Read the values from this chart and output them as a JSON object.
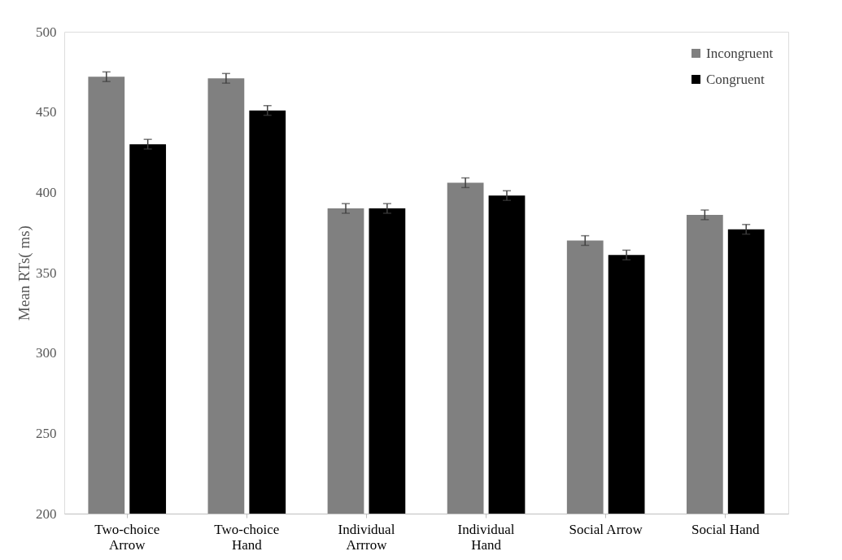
{
  "chart_data": {
    "type": "bar",
    "ylabel": "Mean RTs( ms)",
    "categories": [
      "Two-choice Arrow",
      "Two-choice Hand",
      "Individual Arrrow",
      "Individual Hand",
      "Social Arrow",
      "Social Hand"
    ],
    "series": [
      {
        "name": "Incongruent",
        "color": "#808080",
        "values": [
          472,
          471,
          390,
          406,
          370,
          386
        ],
        "errors": [
          3,
          3,
          3,
          3,
          3,
          3
        ]
      },
      {
        "name": "Congruent",
        "color": "#000000",
        "values": [
          430,
          451,
          390,
          398,
          361,
          377
        ],
        "errors": [
          3,
          3,
          3,
          3,
          3,
          3
        ]
      }
    ],
    "ylim": [
      200,
      500
    ],
    "yticks": [
      200,
      250,
      300,
      350,
      400,
      450,
      500
    ],
    "grid": false,
    "legend": "top right"
  }
}
